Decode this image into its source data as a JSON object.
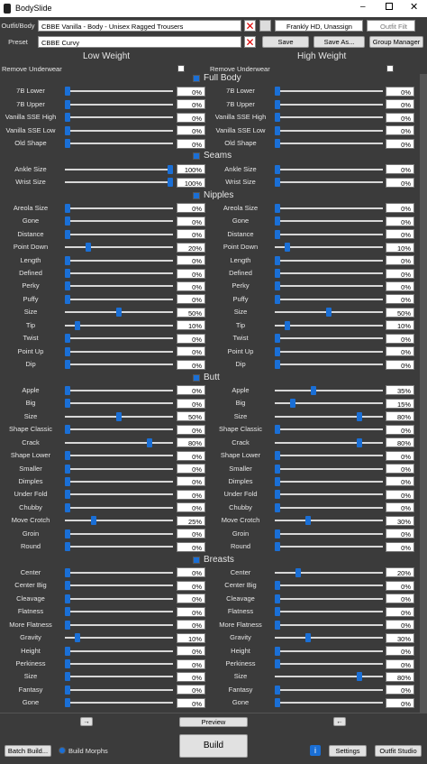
{
  "window": {
    "title": "BodySlide"
  },
  "toolbar": {
    "outfit_label": "Outfit/Body",
    "outfit_value": "CBBE Vanilla - Body - Unisex Ragged Trousers",
    "filter1": "Frankly HD, Unassign",
    "filter2": "Outfit Filt",
    "preset_label": "Preset",
    "preset_value": "CBBE Curvy",
    "save": "Save",
    "save_as": "Save As...",
    "group_manager": "Group Manager"
  },
  "columns": {
    "low": "Low Weight",
    "high": "High Weight",
    "remove_underwear": "Remove Underwear"
  },
  "sections": [
    {
      "title": "Full Body",
      "sliders": [
        {
          "name": "7B Lower",
          "low": "0%",
          "high": "0%"
        },
        {
          "name": "7B Upper",
          "low": "0%",
          "high": "0%"
        },
        {
          "name": "Vanilla SSE High",
          "low": "0%",
          "high": "0%"
        },
        {
          "name": "Vanilla SSE Low",
          "low": "0%",
          "high": "0%"
        },
        {
          "name": "Old Shape",
          "low": "0%",
          "high": "0%"
        }
      ]
    },
    {
      "title": "Seams",
      "sliders": [
        {
          "name": "Ankle Size",
          "low": "100%",
          "high": "0%"
        },
        {
          "name": "Wrist Size",
          "low": "100%",
          "high": "0%"
        }
      ]
    },
    {
      "title": "Nipples",
      "sliders": [
        {
          "name": "Areola Size",
          "low": "0%",
          "high": "0%"
        },
        {
          "name": "Gone",
          "low": "0%",
          "high": "0%"
        },
        {
          "name": "Distance",
          "low": "0%",
          "high": "0%"
        },
        {
          "name": "Point Down",
          "low": "20%",
          "high": "10%"
        },
        {
          "name": "Length",
          "low": "0%",
          "high": "0%"
        },
        {
          "name": "Defined",
          "low": "0%",
          "high": "0%"
        },
        {
          "name": "Perky",
          "low": "0%",
          "high": "0%"
        },
        {
          "name": "Puffy",
          "low": "0%",
          "high": "0%"
        },
        {
          "name": "Size",
          "low": "50%",
          "high": "50%"
        },
        {
          "name": "Tip",
          "low": "10%",
          "high": "10%"
        },
        {
          "name": "Twist",
          "low": "0%",
          "high": "0%"
        },
        {
          "name": "Point Up",
          "low": "0%",
          "high": "0%"
        },
        {
          "name": "Dip",
          "low": "0%",
          "high": "0%"
        }
      ]
    },
    {
      "title": "Butt",
      "sliders": [
        {
          "name": "Apple",
          "low": "0%",
          "high": "35%"
        },
        {
          "name": "Big",
          "low": "0%",
          "high": "15%"
        },
        {
          "name": "Size",
          "low": "50%",
          "high": "80%"
        },
        {
          "name": "Shape Classic",
          "low": "0%",
          "high": "0%"
        },
        {
          "name": "Crack",
          "low": "80%",
          "high": "80%"
        },
        {
          "name": "Shape Lower",
          "low": "0%",
          "high": "0%"
        },
        {
          "name": "Smaller",
          "low": "0%",
          "high": "0%"
        },
        {
          "name": "Dimples",
          "low": "0%",
          "high": "0%"
        },
        {
          "name": "Under Fold",
          "low": "0%",
          "high": "0%"
        },
        {
          "name": "Chubby",
          "low": "0%",
          "high": "0%"
        },
        {
          "name": "Move Crotch",
          "low": "25%",
          "high": "30%"
        },
        {
          "name": "Groin",
          "low": "0%",
          "high": "0%"
        },
        {
          "name": "Round",
          "low": "0%",
          "high": "0%"
        }
      ]
    },
    {
      "title": "Breasts",
      "sliders": [
        {
          "name": "Center",
          "low": "0%",
          "high": "20%"
        },
        {
          "name": "Center Big",
          "low": "0%",
          "high": "0%"
        },
        {
          "name": "Cleavage",
          "low": "0%",
          "high": "0%"
        },
        {
          "name": "Flatness",
          "low": "0%",
          "high": "0%"
        },
        {
          "name": "More Flatness",
          "low": "0%",
          "high": "0%"
        },
        {
          "name": "Gravity",
          "low": "10%",
          "high": "30%"
        },
        {
          "name": "Height",
          "low": "0%",
          "high": "0%"
        },
        {
          "name": "Perkiness",
          "low": "0%",
          "high": "0%"
        },
        {
          "name": "Size",
          "low": "0%",
          "high": "80%"
        },
        {
          "name": "Fantasy",
          "low": "0%",
          "high": "0%"
        },
        {
          "name": "Gone",
          "low": "0%",
          "high": "0%"
        }
      ]
    }
  ],
  "footer": {
    "preview": "Preview",
    "batch_build": "Batch Build...",
    "build_morphs": "Build Morphs",
    "build": "Build",
    "settings": "Settings",
    "outfit_studio": "Outfit Studio"
  }
}
